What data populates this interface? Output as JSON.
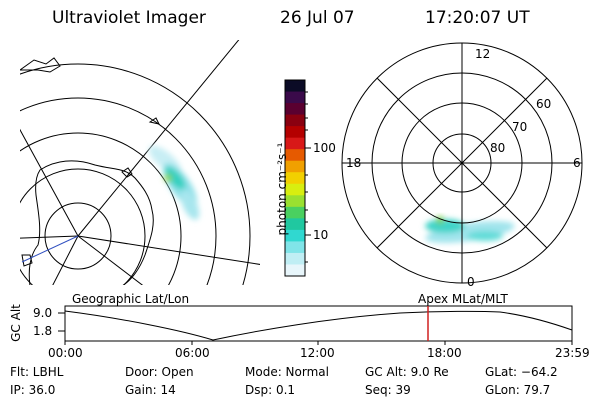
{
  "header": {
    "instrument": "Ultraviolet Imager",
    "date": "26 Jul 07",
    "time": "17:20:07 UT"
  },
  "colorbar": {
    "label": "photon cm⁻²s⁻¹",
    "ticks": [
      "100",
      "10"
    ],
    "colors": [
      "#0b0b26",
      "#3a0a4a",
      "#5a0030",
      "#8a0010",
      "#b40000",
      "#d81818",
      "#e65a00",
      "#f0a000",
      "#f2d000",
      "#d8ee10",
      "#9ae030",
      "#4ad060",
      "#20c8a0",
      "#30d8d0",
      "#80e4e8",
      "#c0eef4",
      "#e8f6fb"
    ]
  },
  "polar": {
    "mlt_labels": {
      "top": "12",
      "left": "18",
      "right": "6",
      "bottom": "0"
    },
    "lat_labels": [
      "60",
      "70",
      "80"
    ]
  },
  "timeline": {
    "axis_label": "GC Alt",
    "y_ticks": [
      "9.0",
      "1.8"
    ],
    "left_caption": "Geographic Lat/Lon",
    "right_caption": "Apex MLat/MLT",
    "x_ticks": [
      "00:00",
      "06:00",
      "12:00",
      "18:00",
      "23:59"
    ],
    "marker_time": "17:20"
  },
  "info": {
    "flt": "Flt: LBHL",
    "ip": "IP: 36.0",
    "door": "Door: Open",
    "gain": "Gain: 14",
    "mode": "Mode: Normal",
    "dsp": "Dsp:     0.1",
    "gc_alt": "GC Alt: 9.0 Re",
    "seq": "Seq: 39",
    "glat": "GLat: −64.2",
    "glon": "GLon:  79.7"
  }
}
